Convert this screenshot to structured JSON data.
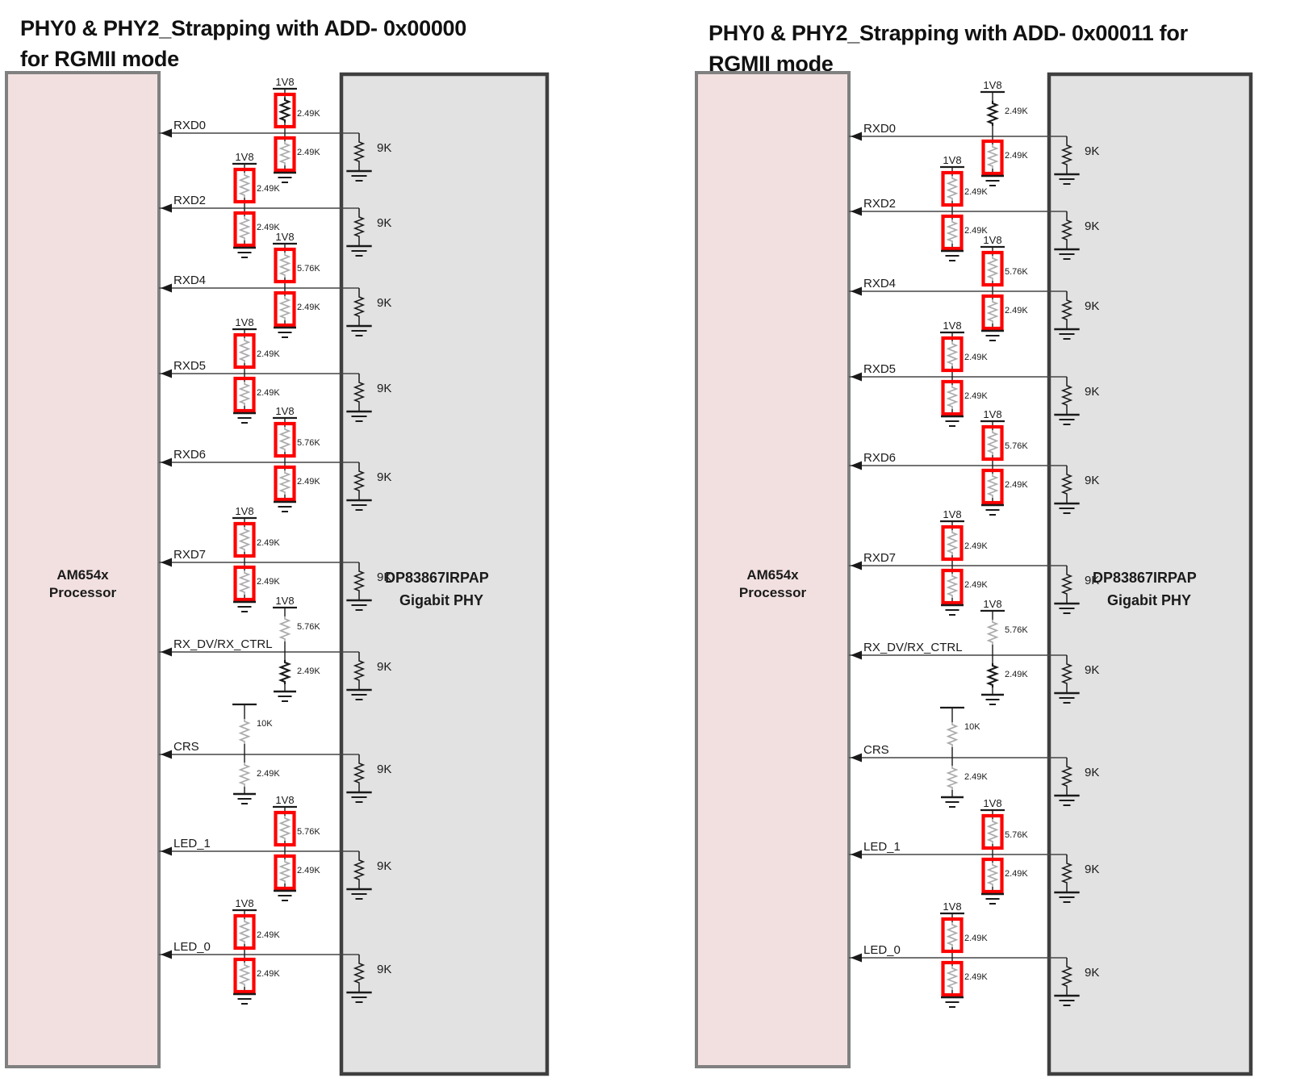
{
  "colors": {
    "processor_fill": "#f2e0e0",
    "processor_border": "#808080",
    "phy_fill": "#e2e2e2",
    "phy_border": "#3f3f3f",
    "highlight_box": "#fe0000",
    "wire": "#454545",
    "resistor_light": "#ababab",
    "resistor_dark": "#1a1a1a",
    "text": "#1a1a1a"
  },
  "diagrams": [
    {
      "title_line1": "PHY0 & PHY2_Strapping with ADD- 0x00000",
      "title_line2": "for RGMII mode",
      "processor": {
        "line1": "AM654x",
        "line2": "Processor"
      },
      "phy": {
        "line1": "DP83867IRPAP",
        "line2": "Gigabit PHY"
      },
      "signals": [
        {
          "name": "RXD0",
          "rail": "1V8",
          "pullup": {
            "value": "2.49K",
            "boxed": true,
            "dark": true
          },
          "pulldown": {
            "value": "2.49K",
            "boxed": true,
            "dark": false
          },
          "phy_pull": "9K"
        },
        {
          "name": "RXD2",
          "rail": "1V8",
          "pullup": {
            "value": "2.49K",
            "boxed": true,
            "dark": false
          },
          "pulldown": {
            "value": "2.49K",
            "boxed": true,
            "dark": false
          },
          "phy_pull": "9K"
        },
        {
          "name": "RXD4",
          "rail": "1V8",
          "pullup": {
            "value": "5.76K",
            "boxed": true,
            "dark": false
          },
          "pulldown": {
            "value": "2.49K",
            "boxed": true,
            "dark": false
          },
          "phy_pull": "9K"
        },
        {
          "name": "RXD5",
          "rail": "1V8",
          "pullup": {
            "value": "2.49K",
            "boxed": true,
            "dark": false
          },
          "pulldown": {
            "value": "2.49K",
            "boxed": true,
            "dark": false
          },
          "phy_pull": "9K"
        },
        {
          "name": "RXD6",
          "rail": "1V8",
          "pullup": {
            "value": "5.76K",
            "boxed": true,
            "dark": false
          },
          "pulldown": {
            "value": "2.49K",
            "boxed": true,
            "dark": false
          },
          "phy_pull": "9K"
        },
        {
          "name": "RXD7",
          "rail": "1V8",
          "pullup": {
            "value": "2.49K",
            "boxed": true,
            "dark": false
          },
          "pulldown": {
            "value": "2.49K",
            "boxed": true,
            "dark": false
          },
          "phy_pull": "9K"
        },
        {
          "name": "RX_DV/RX_CTRL",
          "rail": "1V8",
          "pullup": {
            "value": "5.76K",
            "boxed": false,
            "dark": false
          },
          "pulldown": {
            "value": "2.49K",
            "boxed": false,
            "dark": true
          },
          "phy_pull": "9K"
        },
        {
          "name": "CRS",
          "rail": "",
          "pullup": {
            "value": "10K",
            "boxed": false,
            "dark": false
          },
          "pulldown": {
            "value": "2.49K",
            "boxed": false,
            "dark": false
          },
          "phy_pull": "9K"
        },
        {
          "name": "LED_1",
          "rail": "1V8",
          "pullup": {
            "value": "5.76K",
            "boxed": true,
            "dark": false
          },
          "pulldown": {
            "value": "2.49K",
            "boxed": true,
            "dark": false
          },
          "phy_pull": "9K"
        },
        {
          "name": "LED_0",
          "rail": "1V8",
          "pullup": {
            "value": "2.49K",
            "boxed": true,
            "dark": false
          },
          "pulldown": {
            "value": "2.49K",
            "boxed": true,
            "dark": false
          },
          "phy_pull": "9K"
        }
      ]
    },
    {
      "title_line1": "PHY0 & PHY2_Strapping with ADD- 0x00011 for",
      "title_line2": "RGMII mode",
      "processor": {
        "line1": "AM654x",
        "line2": "Processor"
      },
      "phy": {
        "line1": "DP83867IRPAP",
        "line2": "Gigabit PHY"
      },
      "signals": [
        {
          "name": "RXD0",
          "rail": "1V8",
          "pullup": {
            "value": "2.49K",
            "boxed": false,
            "dark": true
          },
          "pulldown": {
            "value": "2.49K",
            "boxed": true,
            "dark": false
          },
          "phy_pull": "9K"
        },
        {
          "name": "RXD2",
          "rail": "1V8",
          "pullup": {
            "value": "2.49K",
            "boxed": true,
            "dark": false
          },
          "pulldown": {
            "value": "2.49K",
            "boxed": true,
            "dark": false
          },
          "phy_pull": "9K"
        },
        {
          "name": "RXD4",
          "rail": "1V8",
          "pullup": {
            "value": "5.76K",
            "boxed": true,
            "dark": false
          },
          "pulldown": {
            "value": "2.49K",
            "boxed": true,
            "dark": false
          },
          "phy_pull": "9K"
        },
        {
          "name": "RXD5",
          "rail": "1V8",
          "pullup": {
            "value": "2.49K",
            "boxed": true,
            "dark": false
          },
          "pulldown": {
            "value": "2.49K",
            "boxed": true,
            "dark": false
          },
          "phy_pull": "9K"
        },
        {
          "name": "RXD6",
          "rail": "1V8",
          "pullup": {
            "value": "5.76K",
            "boxed": true,
            "dark": false
          },
          "pulldown": {
            "value": "2.49K",
            "boxed": true,
            "dark": false
          },
          "phy_pull": "9K"
        },
        {
          "name": "RXD7",
          "rail": "1V8",
          "pullup": {
            "value": "2.49K",
            "boxed": true,
            "dark": false
          },
          "pulldown": {
            "value": "2.49K",
            "boxed": true,
            "dark": false
          },
          "phy_pull": "9K"
        },
        {
          "name": "RX_DV/RX_CTRL",
          "rail": "1V8",
          "pullup": {
            "value": "5.76K",
            "boxed": false,
            "dark": false
          },
          "pulldown": {
            "value": "2.49K",
            "boxed": false,
            "dark": true
          },
          "phy_pull": "9K"
        },
        {
          "name": "CRS",
          "rail": "",
          "pullup": {
            "value": "10K",
            "boxed": false,
            "dark": false
          },
          "pulldown": {
            "value": "2.49K",
            "boxed": false,
            "dark": false
          },
          "phy_pull": "9K"
        },
        {
          "name": "LED_1",
          "rail": "1V8",
          "pullup": {
            "value": "5.76K",
            "boxed": true,
            "dark": false
          },
          "pulldown": {
            "value": "2.49K",
            "boxed": true,
            "dark": false
          },
          "phy_pull": "9K"
        },
        {
          "name": "LED_0",
          "rail": "1V8",
          "pullup": {
            "value": "2.49K",
            "boxed": true,
            "dark": false
          },
          "pulldown": {
            "value": "2.49K",
            "boxed": true,
            "dark": false
          },
          "phy_pull": "9K"
        }
      ]
    }
  ]
}
